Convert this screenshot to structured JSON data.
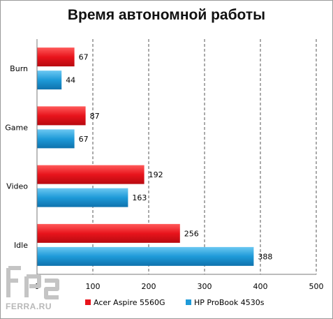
{
  "chart_data": {
    "type": "bar",
    "orientation": "horizontal",
    "title": "Время автономной работы",
    "categories": [
      "Burn",
      "Game",
      "Video",
      "Idle"
    ],
    "series": [
      {
        "name": "Acer Aspire 5560G",
        "color": "#e8141c",
        "values": [
          67,
          87,
          192,
          256
        ]
      },
      {
        "name": "HP ProBook 4530s",
        "color": "#1e9ad8",
        "values": [
          44,
          67,
          163,
          388
        ]
      }
    ],
    "xlim": [
      0,
      500
    ],
    "xticks": [
      "0",
      "100",
      "200",
      "300",
      "400",
      "500"
    ],
    "grid": "vertical dashed",
    "legend_position": "bottom"
  },
  "watermark": {
    "text": "FERRA.RU"
  }
}
